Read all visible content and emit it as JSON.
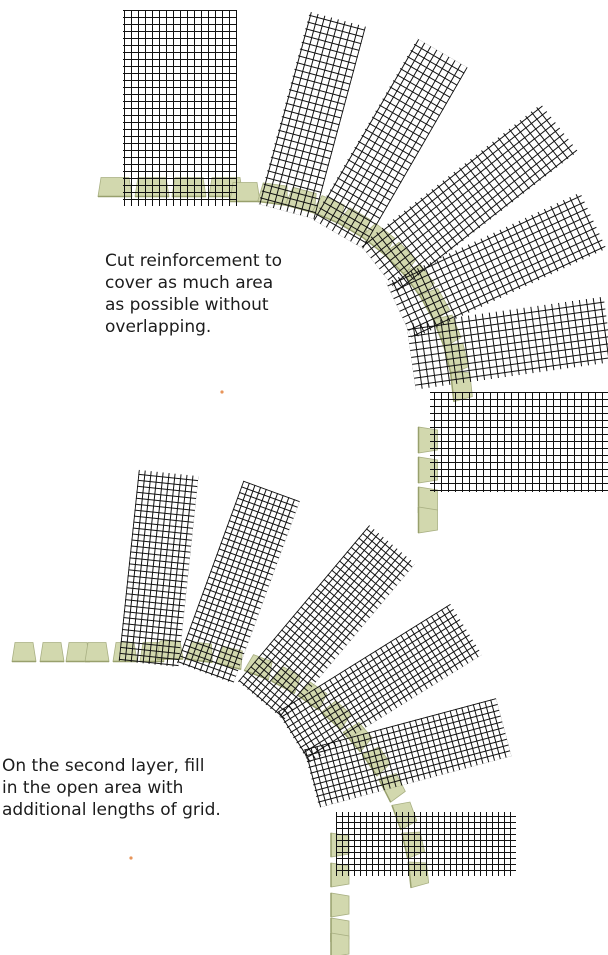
{
  "diagram": {
    "caption_layer1": "Cut reinforcement to\ncover as much area\nas possible without\noverlapping.",
    "caption_layer2": "On the second layer, fill\nin the open area with\nadditional lengths of grid."
  },
  "colors": {
    "block_fill": "#d2d8ae",
    "block_edge": "#a9b083",
    "block_shadow": "#98a06d",
    "grid_line": "#111111",
    "dot": "#e8955a"
  }
}
